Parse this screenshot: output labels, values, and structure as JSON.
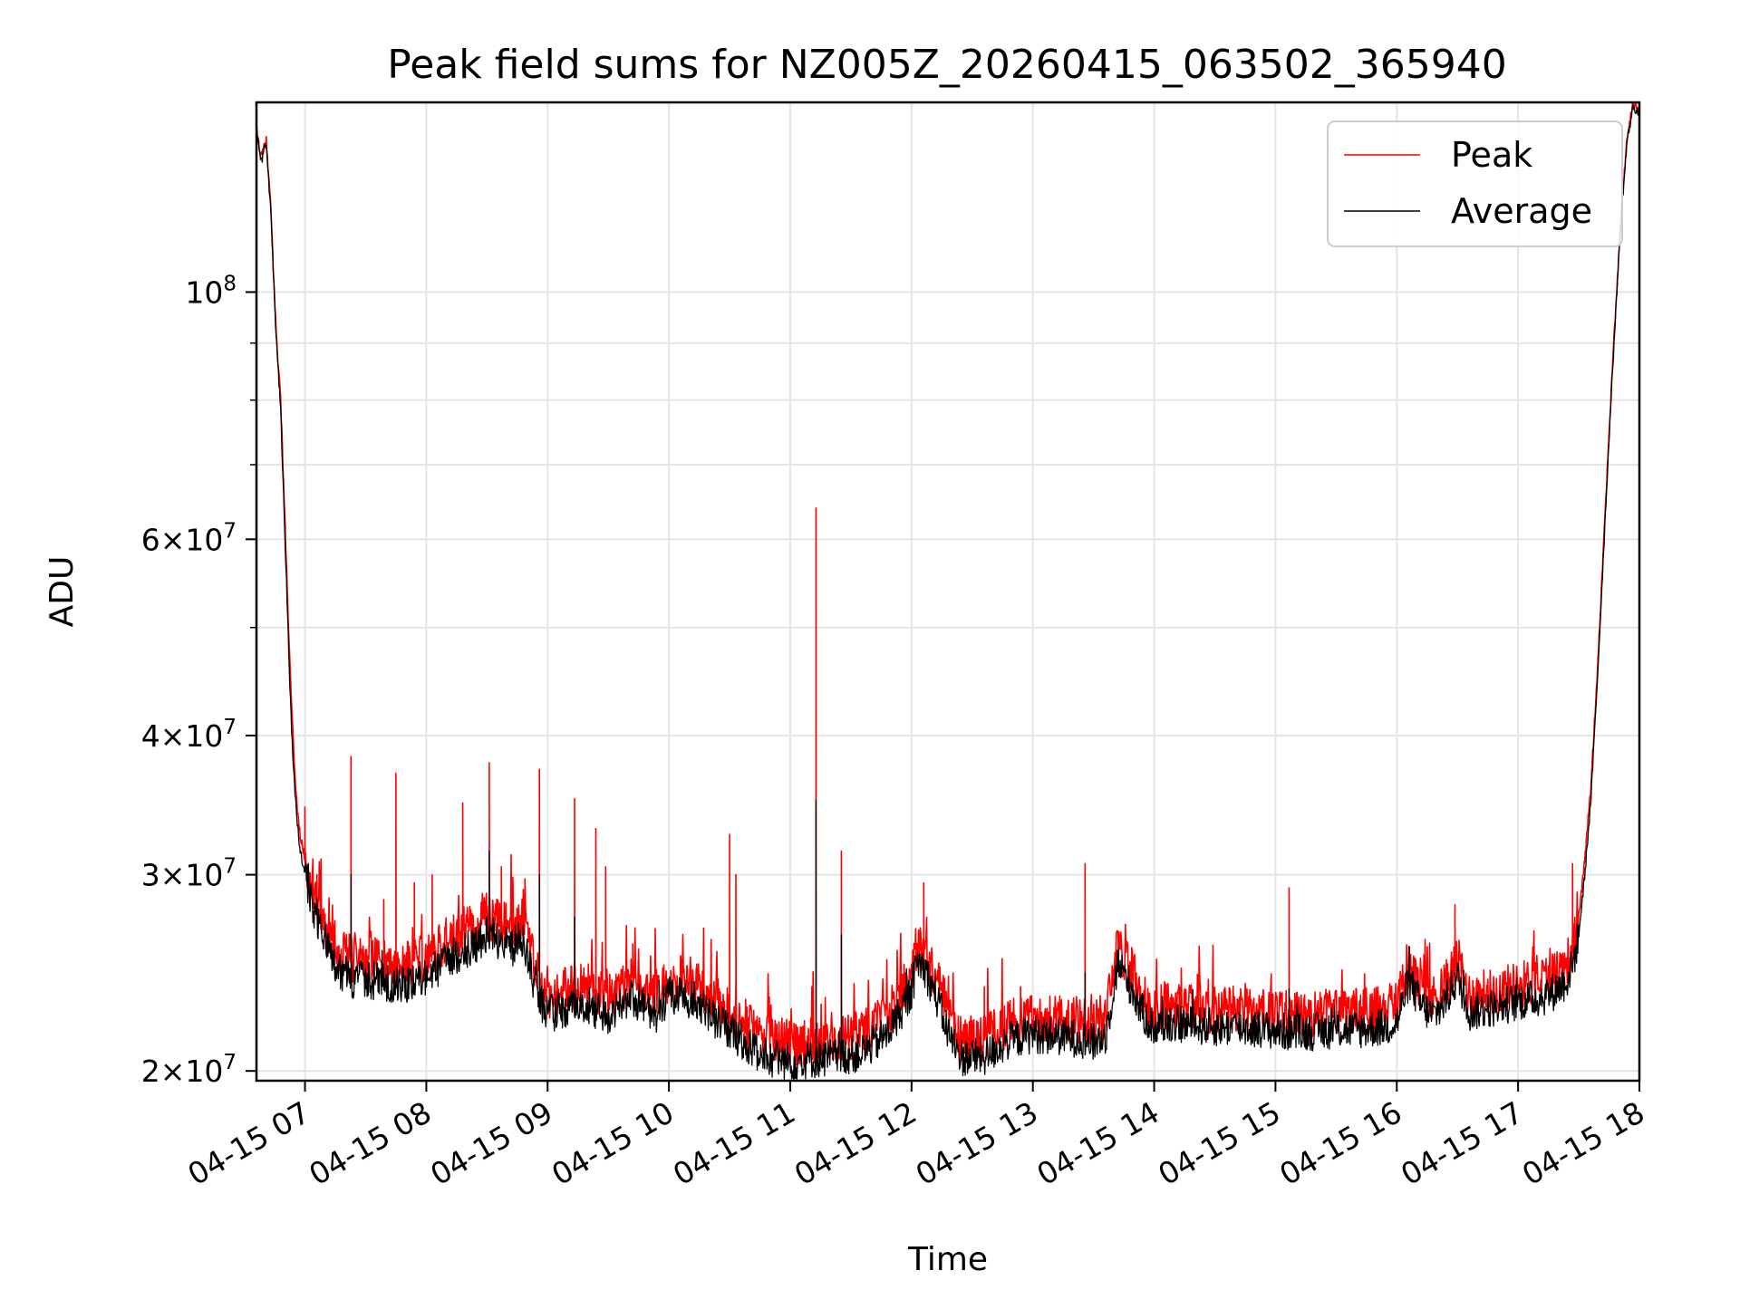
{
  "chart_data": {
    "type": "line",
    "title": "Peak field sums for NZ005Z_20260415_063502_365940",
    "xlabel": "Time",
    "ylabel": "ADU",
    "yscale": "log",
    "xlim": [
      6.6,
      18.0
    ],
    "ylim": [
      19600000,
      148000000
    ],
    "grid": true,
    "legend_position": "top-right",
    "x_ticks": [
      {
        "value": 7,
        "label": "04-15 07"
      },
      {
        "value": 8,
        "label": "04-15 08"
      },
      {
        "value": 9,
        "label": "04-15 09"
      },
      {
        "value": 10,
        "label": "04-15 10"
      },
      {
        "value": 11,
        "label": "04-15 11"
      },
      {
        "value": 12,
        "label": "04-15 12"
      },
      {
        "value": 13,
        "label": "04-15 13"
      },
      {
        "value": 14,
        "label": "04-15 14"
      },
      {
        "value": 15,
        "label": "04-15 15"
      },
      {
        "value": 16,
        "label": "04-15 16"
      },
      {
        "value": 17,
        "label": "04-15 17"
      },
      {
        "value": 18,
        "label": "04-15 18"
      }
    ],
    "y_ticks": [
      {
        "value": 20000000,
        "mantissa": "2",
        "base": "10",
        "exp": "7"
      },
      {
        "value": 30000000,
        "mantissa": "3",
        "base": "10",
        "exp": "7"
      },
      {
        "value": 40000000,
        "mantissa": "4",
        "base": "10",
        "exp": "7"
      },
      {
        "value": 60000000,
        "mantissa": "6",
        "base": "10",
        "exp": "7"
      },
      {
        "value": 100000000,
        "mantissa": "",
        "base": "10",
        "exp": "8"
      }
    ],
    "y_minor_ticks": [
      50000000,
      70000000,
      80000000,
      90000000
    ],
    "x_unit": "hour of day (2026-04-15)",
    "series": [
      {
        "name": "Peak",
        "color": "#ff0000",
        "x": [
          6.6,
          6.64,
          6.68,
          6.72,
          6.76,
          6.8,
          6.84,
          6.87,
          6.9,
          6.93,
          6.96,
          7.0,
          7.05,
          7.1,
          7.2,
          7.3,
          7.4,
          7.6,
          7.8,
          8.0,
          8.2,
          8.3,
          8.4,
          8.5,
          8.6,
          8.7,
          8.8,
          8.9,
          9.0,
          9.1,
          9.3,
          9.5,
          9.7,
          9.8,
          9.9,
          10.0,
          10.2,
          10.4,
          10.6,
          10.8,
          11.0,
          11.2,
          11.4,
          11.6,
          11.8,
          11.9,
          12.0,
          12.05,
          12.1,
          12.2,
          12.3,
          12.4,
          12.6,
          12.8,
          13.0,
          13.2,
          13.4,
          13.5,
          13.6,
          13.7,
          13.8,
          13.9,
          14.0,
          14.1,
          14.3,
          14.5,
          14.7,
          14.9,
          15.1,
          15.3,
          15.5,
          15.7,
          15.9,
          16.0,
          16.1,
          16.2,
          16.3,
          16.4,
          16.5,
          16.6,
          16.8,
          17.0,
          17.2,
          17.3,
          17.4,
          17.45,
          17.5,
          17.55,
          17.6,
          17.65,
          17.7,
          17.75,
          17.8,
          17.85,
          17.9,
          17.95,
          18.0
        ],
        "y": [
          140000000,
          132000000,
          137000000,
          118000000,
          93000000,
          80000000,
          60000000,
          48000000,
          40000000,
          35000000,
          32500000,
          31000000,
          29500000,
          28500000,
          26500000,
          25500000,
          25200000,
          25100000,
          24900000,
          25300000,
          26300000,
          26700000,
          27100000,
          27600000,
          27200000,
          26900000,
          27400000,
          24600000,
          23400000,
          23600000,
          23900000,
          23300000,
          24200000,
          23700000,
          23400000,
          24300000,
          24100000,
          23100000,
          22100000,
          21400000,
          21200000,
          21300000,
          21400000,
          21600000,
          22400000,
          23300000,
          24500000,
          26000000,
          25700000,
          24300000,
          22600000,
          21400000,
          21400000,
          22100000,
          22400000,
          22300000,
          22200000,
          22000000,
          22300000,
          26000000,
          24800000,
          23400000,
          22600000,
          22900000,
          22800000,
          22700000,
          22700000,
          22600000,
          22500000,
          22500000,
          22600000,
          22600000,
          22700000,
          22900000,
          25000000,
          23700000,
          23200000,
          23900000,
          25200000,
          23400000,
          23600000,
          23900000,
          24200000,
          24500000,
          25000000,
          25800000,
          27500000,
          31000000,
          36000000,
          45000000,
          58000000,
          75000000,
          95000000,
          118000000,
          138000000,
          148000000,
          145000000
        ],
        "spikes": [
          {
            "x": 7.0,
            "y": 34500000
          },
          {
            "x": 7.1,
            "y": 30000000
          },
          {
            "x": 7.38,
            "y": 38300000
          },
          {
            "x": 7.65,
            "y": 28500000
          },
          {
            "x": 7.75,
            "y": 37000000
          },
          {
            "x": 7.9,
            "y": 29500000
          },
          {
            "x": 8.05,
            "y": 30000000
          },
          {
            "x": 8.3,
            "y": 34800000
          },
          {
            "x": 8.52,
            "y": 37800000
          },
          {
            "x": 8.62,
            "y": 30500000
          },
          {
            "x": 8.93,
            "y": 37300000
          },
          {
            "x": 9.22,
            "y": 35100000
          },
          {
            "x": 9.4,
            "y": 33000000
          },
          {
            "x": 9.48,
            "y": 30500000
          },
          {
            "x": 9.7,
            "y": 26000000
          },
          {
            "x": 10.5,
            "y": 32600000
          },
          {
            "x": 10.55,
            "y": 30000000
          },
          {
            "x": 11.21,
            "y": 64000000
          },
          {
            "x": 11.42,
            "y": 31500000
          },
          {
            "x": 12.1,
            "y": 29500000
          },
          {
            "x": 12.6,
            "y": 23800000
          },
          {
            "x": 12.9,
            "y": 23800000
          },
          {
            "x": 13.43,
            "y": 30700000
          },
          {
            "x": 14.3,
            "y": 23500000
          },
          {
            "x": 14.9,
            "y": 23600000
          },
          {
            "x": 15.11,
            "y": 29200000
          },
          {
            "x": 15.7,
            "y": 23400000
          },
          {
            "x": 16.48,
            "y": 28200000
          },
          {
            "x": 17.45,
            "y": 30700000
          }
        ]
      },
      {
        "name": "Average",
        "color": "#000000",
        "x": [
          6.6,
          6.64,
          6.68,
          6.72,
          6.76,
          6.8,
          6.84,
          6.87,
          6.9,
          6.93,
          6.96,
          7.0,
          7.05,
          7.1,
          7.2,
          7.3,
          7.4,
          7.6,
          7.8,
          8.0,
          8.2,
          8.3,
          8.4,
          8.5,
          8.6,
          8.7,
          8.8,
          8.9,
          9.0,
          9.1,
          9.3,
          9.5,
          9.7,
          9.8,
          9.9,
          10.0,
          10.2,
          10.4,
          10.6,
          10.8,
          11.0,
          11.2,
          11.4,
          11.6,
          11.8,
          11.9,
          12.0,
          12.05,
          12.1,
          12.2,
          12.3,
          12.4,
          12.6,
          12.8,
          13.0,
          13.2,
          13.4,
          13.5,
          13.6,
          13.7,
          13.8,
          13.9,
          14.0,
          14.1,
          14.3,
          14.5,
          14.7,
          14.9,
          15.1,
          15.3,
          15.5,
          15.7,
          15.9,
          16.0,
          16.1,
          16.2,
          16.3,
          16.4,
          16.5,
          16.6,
          16.8,
          17.0,
          17.2,
          17.3,
          17.4,
          17.45,
          17.5,
          17.55,
          17.6,
          17.65,
          17.7,
          17.75,
          17.8,
          17.85,
          17.9,
          17.95,
          18.0
        ],
        "y": [
          139000000,
          131000000,
          136000000,
          117000000,
          92000000,
          78000000,
          58000000,
          46000000,
          38000000,
          34000000,
          31500000,
          30000000,
          28500000,
          27500000,
          25500000,
          24500000,
          24200000,
          24100000,
          23900000,
          24300000,
          25300000,
          25600000,
          26000000,
          26500000,
          26100000,
          25800000,
          26400000,
          23600000,
          22500000,
          22700000,
          23000000,
          22400000,
          23300000,
          22800000,
          22500000,
          23400000,
          23200000,
          22200000,
          21300000,
          20600000,
          20400000,
          20500000,
          20600000,
          20800000,
          21600000,
          22500000,
          23600000,
          25100000,
          24800000,
          23400000,
          21700000,
          20600000,
          20600000,
          21300000,
          21600000,
          21500000,
          21400000,
          21200000,
          21500000,
          25000000,
          23900000,
          22600000,
          21800000,
          22100000,
          22000000,
          21900000,
          21900000,
          21800000,
          21700000,
          21700000,
          21800000,
          21800000,
          21900000,
          22100000,
          24100000,
          22900000,
          22400000,
          23100000,
          24300000,
          22600000,
          22800000,
          23100000,
          23300000,
          23600000,
          24100000,
          24900000,
          26500000,
          30000000,
          35000000,
          44000000,
          57000000,
          74000000,
          94000000,
          117000000,
          137000000,
          147000000,
          144000000
        ],
        "spikes": [
          {
            "x": 7.38,
            "y": 30000000
          },
          {
            "x": 8.52,
            "y": 31500000
          },
          {
            "x": 8.93,
            "y": 30000000
          },
          {
            "x": 9.22,
            "y": 27500000
          },
          {
            "x": 11.21,
            "y": 35000000
          },
          {
            "x": 11.42,
            "y": 26500000
          },
          {
            "x": 13.43,
            "y": 24500000
          },
          {
            "x": 15.11,
            "y": 23700000
          },
          {
            "x": 16.48,
            "y": 24500000
          }
        ]
      }
    ],
    "legend": [
      {
        "label": "Peak",
        "color": "#ff0000"
      },
      {
        "label": "Average",
        "color": "#000000"
      }
    ]
  }
}
